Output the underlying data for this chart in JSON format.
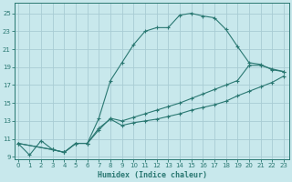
{
  "xlabel": "Humidex (Indice chaleur)",
  "bg_color": "#c8e8ec",
  "grid_color": "#a8ccd4",
  "line_color": "#2a7872",
  "xlim_min": -0.3,
  "xlim_max": 23.5,
  "ylim_min": 8.7,
  "ylim_max": 26.2,
  "xtick_vals": [
    0,
    1,
    2,
    3,
    4,
    5,
    6,
    7,
    8,
    9,
    10,
    11,
    12,
    13,
    14,
    15,
    16,
    17,
    18,
    19,
    20,
    21,
    22,
    23
  ],
  "ytick_vals": [
    9,
    11,
    13,
    15,
    17,
    19,
    21,
    23,
    25
  ],
  "curve1_x": [
    0,
    1,
    2,
    3,
    4,
    5,
    6,
    7,
    8,
    9,
    10,
    11,
    12,
    13,
    14,
    15,
    16,
    17,
    18,
    19,
    20,
    21,
    22,
    23
  ],
  "curve1_y": [
    10.5,
    9.2,
    10.8,
    9.8,
    9.5,
    10.5,
    10.5,
    13.3,
    17.5,
    19.5,
    21.5,
    23.0,
    23.4,
    23.4,
    24.8,
    25.0,
    24.7,
    24.5,
    23.2,
    21.3,
    19.5,
    19.3,
    18.7,
    18.5
  ],
  "curve2_x": [
    0,
    3,
    4,
    5,
    6,
    7,
    8,
    9,
    10,
    11,
    12,
    13,
    14,
    15,
    16,
    17,
    18,
    19,
    20,
    21,
    22,
    23
  ],
  "curve2_y": [
    10.5,
    9.8,
    9.5,
    10.5,
    10.5,
    12.0,
    13.3,
    13.0,
    13.4,
    13.8,
    14.2,
    14.6,
    15.0,
    15.5,
    16.0,
    16.5,
    17.0,
    17.5,
    19.2,
    19.2,
    18.8,
    18.5
  ],
  "curve3_x": [
    0,
    3,
    4,
    5,
    6,
    7,
    8,
    9,
    10,
    11,
    12,
    13,
    14,
    15,
    16,
    17,
    18,
    19,
    20,
    21,
    22,
    23
  ],
  "curve3_y": [
    10.5,
    9.8,
    9.5,
    10.5,
    10.5,
    12.2,
    13.2,
    12.5,
    12.8,
    13.0,
    13.2,
    13.5,
    13.8,
    14.2,
    14.5,
    14.8,
    15.2,
    15.8,
    16.3,
    16.8,
    17.3,
    18.0
  ]
}
